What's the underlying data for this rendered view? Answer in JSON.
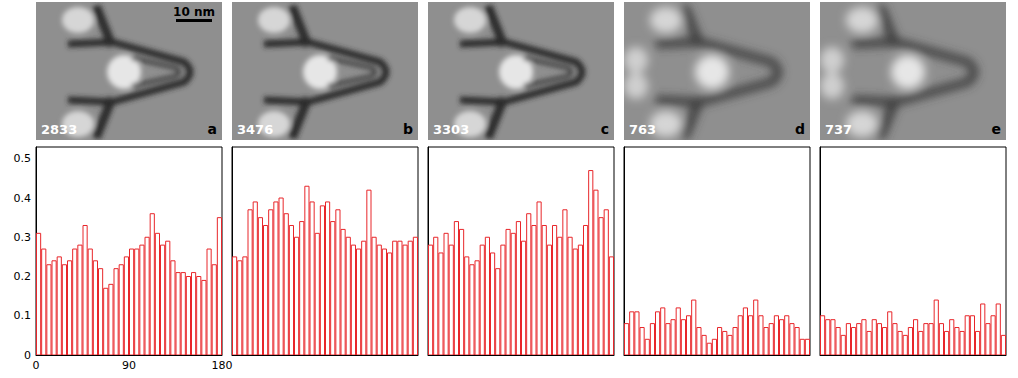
{
  "images": [
    {
      "count": "2833",
      "letter": "a",
      "scale_bar": "10 nm"
    },
    {
      "count": "3476",
      "letter": "b"
    },
    {
      "count": "3303",
      "letter": "c"
    },
    {
      "count": "763",
      "letter": "d"
    },
    {
      "count": "737",
      "letter": "e"
    }
  ],
  "chart_data": [
    {
      "type": "histogram",
      "color": "#e8262a",
      "bins": [
        0,
        5,
        10,
        15,
        20,
        25,
        30,
        35,
        40,
        45,
        50,
        55,
        60,
        65,
        70,
        75,
        80,
        85,
        90,
        95,
        100,
        105,
        110,
        115,
        120,
        125,
        130,
        135,
        140,
        145,
        150,
        155,
        160,
        165,
        170,
        175,
        180
      ],
      "values": [
        0.31,
        0.27,
        0.23,
        0.24,
        0.25,
        0.23,
        0.24,
        0.27,
        0.28,
        0.33,
        0.27,
        0.24,
        0.22,
        0.17,
        0.18,
        0.22,
        0.23,
        0.25,
        0.27,
        0.27,
        0.28,
        0.3,
        0.36,
        0.31,
        0.28,
        0.29,
        0.24,
        0.21,
        0.21,
        0.2,
        0.21,
        0.2,
        0.19,
        0.27,
        0.23,
        0.35
      ],
      "xlim": [
        0,
        180
      ],
      "xticks": [
        0,
        90,
        180
      ],
      "ylim": [
        0,
        0.53
      ],
      "yticks": [
        0,
        0.1,
        0.2,
        0.3,
        0.4,
        0.5
      ]
    },
    {
      "type": "histogram",
      "color": "#e8262a",
      "bins": [
        0,
        5,
        10,
        15,
        20,
        25,
        30,
        35,
        40,
        45,
        50,
        55,
        60,
        65,
        70,
        75,
        80,
        85,
        90,
        95,
        100,
        105,
        110,
        115,
        120,
        125,
        130,
        135,
        140,
        145,
        150,
        155,
        160,
        165,
        170,
        175,
        180
      ],
      "values": [
        0.25,
        0.24,
        0.25,
        0.37,
        0.39,
        0.35,
        0.33,
        0.37,
        0.39,
        0.4,
        0.36,
        0.33,
        0.3,
        0.34,
        0.43,
        0.39,
        0.31,
        0.38,
        0.39,
        0.34,
        0.37,
        0.32,
        0.3,
        0.28,
        0.27,
        0.29,
        0.42,
        0.3,
        0.28,
        0.27,
        0.26,
        0.29,
        0.29,
        0.28,
        0.29,
        0.3
      ],
      "xlim": [
        0,
        180
      ],
      "xticks": [
        0,
        90,
        180
      ],
      "ylim": [
        0,
        0.53
      ],
      "yticks": [
        0,
        0.1,
        0.2,
        0.3,
        0.4,
        0.5
      ],
      "tick_labels": false
    },
    {
      "type": "histogram",
      "color": "#e8262a",
      "bins": [
        0,
        5,
        10,
        15,
        20,
        25,
        30,
        35,
        40,
        45,
        50,
        55,
        60,
        65,
        70,
        75,
        80,
        85,
        90,
        95,
        100,
        105,
        110,
        115,
        120,
        125,
        130,
        135,
        140,
        145,
        150,
        155,
        160,
        165,
        170,
        175,
        180
      ],
      "values": [
        0.28,
        0.3,
        0.26,
        0.31,
        0.28,
        0.34,
        0.32,
        0.25,
        0.23,
        0.24,
        0.28,
        0.3,
        0.26,
        0.22,
        0.28,
        0.32,
        0.31,
        0.34,
        0.29,
        0.36,
        0.33,
        0.39,
        0.33,
        0.28,
        0.33,
        0.3,
        0.37,
        0.3,
        0.27,
        0.28,
        0.33,
        0.47,
        0.42,
        0.35,
        0.37,
        0.25
      ],
      "xlim": [
        0,
        180
      ],
      "xticks": [
        0,
        90,
        180
      ],
      "ylim": [
        0,
        0.53
      ],
      "yticks": [
        0,
        0.1,
        0.2,
        0.3,
        0.4,
        0.5
      ],
      "tick_labels": false
    },
    {
      "type": "histogram",
      "color": "#e8262a",
      "bins": [
        0,
        5,
        10,
        15,
        20,
        25,
        30,
        35,
        40,
        45,
        50,
        55,
        60,
        65,
        70,
        75,
        80,
        85,
        90,
        95,
        100,
        105,
        110,
        115,
        120,
        125,
        130,
        135,
        140,
        145,
        150,
        155,
        160,
        165,
        170,
        175,
        180
      ],
      "values": [
        0.08,
        0.11,
        0.11,
        0.07,
        0.04,
        0.08,
        0.11,
        0.12,
        0.08,
        0.09,
        0.12,
        0.09,
        0.1,
        0.14,
        0.07,
        0.05,
        0.03,
        0.04,
        0.07,
        0.06,
        0.05,
        0.07,
        0.1,
        0.12,
        0.1,
        0.14,
        0.1,
        0.07,
        0.08,
        0.1,
        0.09,
        0.1,
        0.08,
        0.07,
        0.04,
        0.04
      ],
      "xlim": [
        0,
        180
      ],
      "xticks": [
        0,
        90,
        180
      ],
      "ylim": [
        0,
        0.53
      ],
      "yticks": [
        0,
        0.1,
        0.2,
        0.3,
        0.4,
        0.5
      ],
      "tick_labels": false
    },
    {
      "type": "histogram",
      "color": "#e8262a",
      "bins": [
        0,
        5,
        10,
        15,
        20,
        25,
        30,
        35,
        40,
        45,
        50,
        55,
        60,
        65,
        70,
        75,
        80,
        85,
        90,
        95,
        100,
        105,
        110,
        115,
        120,
        125,
        130,
        135,
        140,
        145,
        150,
        155,
        160,
        165,
        170,
        175,
        180
      ],
      "values": [
        0.1,
        0.09,
        0.09,
        0.07,
        0.05,
        0.08,
        0.07,
        0.08,
        0.09,
        0.06,
        0.09,
        0.08,
        0.07,
        0.11,
        0.08,
        0.06,
        0.05,
        0.07,
        0.09,
        0.06,
        0.08,
        0.08,
        0.14,
        0.08,
        0.06,
        0.09,
        0.07,
        0.06,
        0.1,
        0.1,
        0.06,
        0.13,
        0.08,
        0.1,
        0.13,
        0.05
      ],
      "xlim": [
        0,
        180
      ],
      "xticks": [
        0,
        90,
        180
      ],
      "ylim": [
        0,
        0.53
      ],
      "yticks": [
        0,
        0.1,
        0.2,
        0.3,
        0.4,
        0.5
      ],
      "tick_labels": false
    }
  ]
}
